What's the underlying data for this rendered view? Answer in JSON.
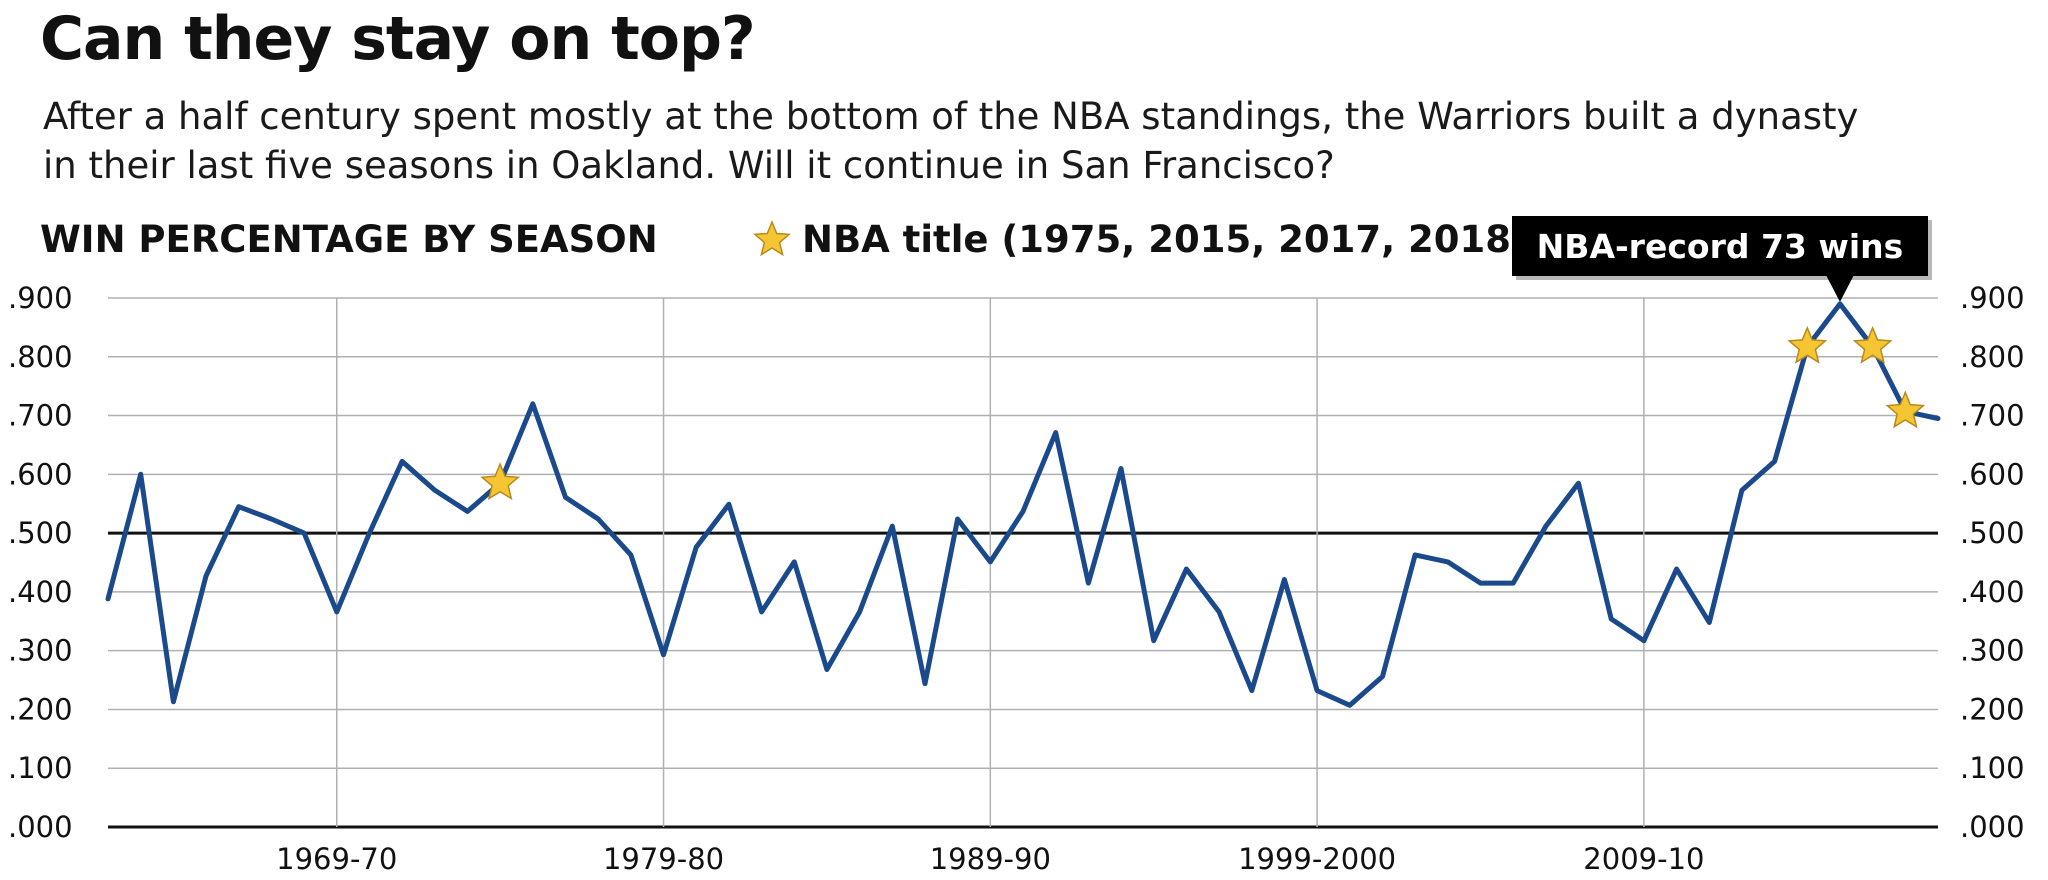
{
  "header": {
    "title": "Can they stay on top?",
    "subtitle": "After a half century spent mostly at the bottom of the NBA standings, the Warriors built a dynasty in their last five seasons in Oakland. Will it continue in San Francisco?"
  },
  "colors": {
    "line": "#1b4a8c",
    "star_fill": "#f5c533",
    "star_stroke": "#b98a1a",
    "callout_bg": "#000000",
    "grid": "#b0b0b0"
  },
  "chart_data": {
    "type": "line",
    "title": "WIN PERCENTAGE BY SEASON",
    "legend": {
      "icon": "star-icon",
      "label": "NBA title (1975, 2015, 2017, 2018)"
    },
    "annotation": {
      "text": "NBA-record 73 wins",
      "x": 2016
    },
    "x_tick_labels": [
      {
        "x": 1970,
        "label": "1969-70"
      },
      {
        "x": 1980,
        "label": "1979-80"
      },
      {
        "x": 1990,
        "label": "1989-90"
      },
      {
        "x": 2000,
        "label": "1999-2000"
      },
      {
        "x": 2010,
        "label": "2009-10"
      }
    ],
    "y_ticks": [
      0,
      0.1,
      0.2,
      0.3,
      0.4,
      0.5,
      0.6,
      0.7,
      0.8,
      0.9
    ],
    "y_tick_labels": [
      ".000",
      ".100",
      ".200",
      ".300",
      ".400",
      ".500",
      ".600",
      ".700",
      ".800",
      ".900"
    ],
    "ylim": [
      0,
      0.9
    ],
    "xlim": [
      1963,
      2019
    ],
    "grid": true,
    "reference_line": 0.5,
    "title_years": [
      1975,
      2015,
      2017,
      2018
    ],
    "series": [
      {
        "x": [
          1963,
          1964,
          1965,
          1966,
          1967,
          1968,
          1969,
          1970,
          1971,
          1972,
          1973,
          1974,
          1975,
          1976,
          1977,
          1978,
          1979,
          1980,
          1981,
          1982,
          1983,
          1984,
          1985,
          1986,
          1987,
          1988,
          1989,
          1990,
          1991,
          1992,
          1993,
          1994,
          1995,
          1996,
          1997,
          1998,
          1999,
          2000,
          2001,
          2002,
          2003,
          2004,
          2005,
          2006,
          2007,
          2008,
          2009,
          2010,
          2011,
          2012,
          2013,
          2014,
          2015,
          2016,
          2017,
          2018,
          2019
        ],
        "values": [
          0.388,
          0.6,
          0.213,
          0.427,
          0.545,
          0.524,
          0.5,
          0.366,
          0.5,
          0.622,
          0.573,
          0.537,
          0.585,
          0.72,
          0.561,
          0.524,
          0.463,
          0.293,
          0.476,
          0.549,
          0.366,
          0.451,
          0.268,
          0.366,
          0.512,
          0.244,
          0.524,
          0.451,
          0.537,
          0.671,
          0.415,
          0.61,
          0.317,
          0.439,
          0.366,
          0.232,
          0.421,
          0.232,
          0.207,
          0.256,
          0.463,
          0.451,
          0.415,
          0.415,
          0.512,
          0.585,
          0.354,
          0.317,
          0.439,
          0.348,
          0.573,
          0.622,
          0.817,
          0.89,
          0.817,
          0.707,
          0.695
        ]
      }
    ]
  }
}
